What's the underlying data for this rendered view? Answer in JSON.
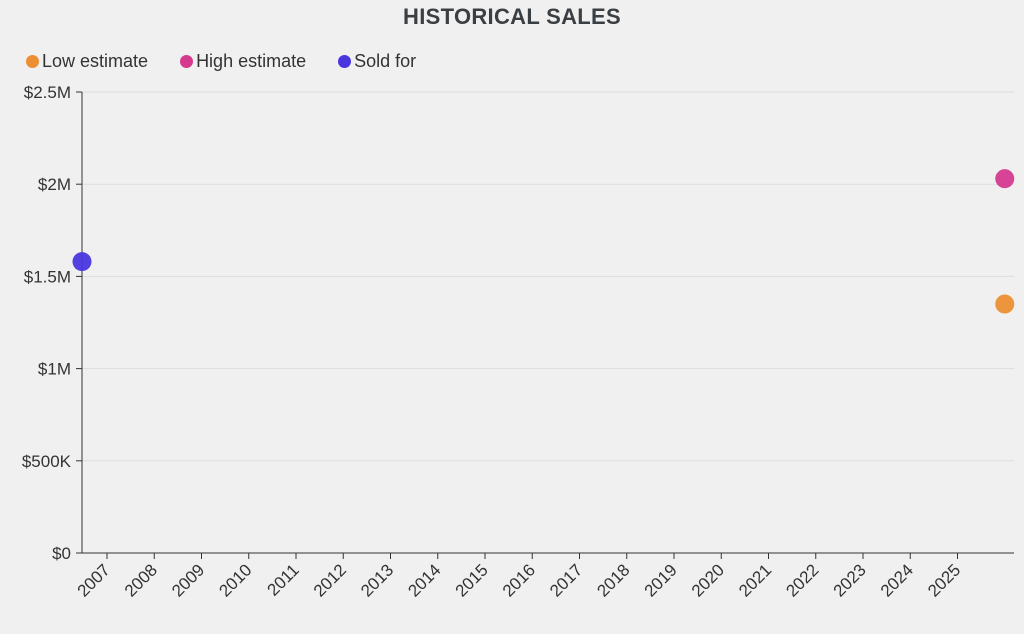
{
  "chart_data": {
    "type": "scatter",
    "title": "HISTORICAL SALES",
    "xlabel": "",
    "ylabel": "",
    "x_categories": [
      "2007",
      "2008",
      "2009",
      "2010",
      "2011",
      "2012",
      "2013",
      "2014",
      "2015",
      "2016",
      "2017",
      "2018",
      "2019",
      "2020",
      "2021",
      "2022",
      "2023",
      "2024",
      "2025"
    ],
    "ylim": [
      0,
      2500000
    ],
    "y_ticks": [
      {
        "value": 0,
        "label": "$0"
      },
      {
        "value": 500000,
        "label": "$500K"
      },
      {
        "value": 1000000,
        "label": "$1M"
      },
      {
        "value": 1500000,
        "label": "$1.5M"
      },
      {
        "value": 2000000,
        "label": "$2M"
      },
      {
        "value": 2500000,
        "label": "$2.5M"
      }
    ],
    "grid": "horizontal",
    "legend_position": "top-left",
    "series": [
      {
        "name": "Low estimate",
        "color": "#ec8f33",
        "points": [
          {
            "x": "2026",
            "y": 1350000
          }
        ]
      },
      {
        "name": "High estimate",
        "color": "#d63a8f",
        "points": [
          {
            "x": "2026",
            "y": 2030000
          }
        ]
      },
      {
        "name": "Sold for",
        "color": "#4a36de",
        "points": [
          {
            "x": "2006",
            "y": 1580000
          }
        ]
      }
    ]
  }
}
